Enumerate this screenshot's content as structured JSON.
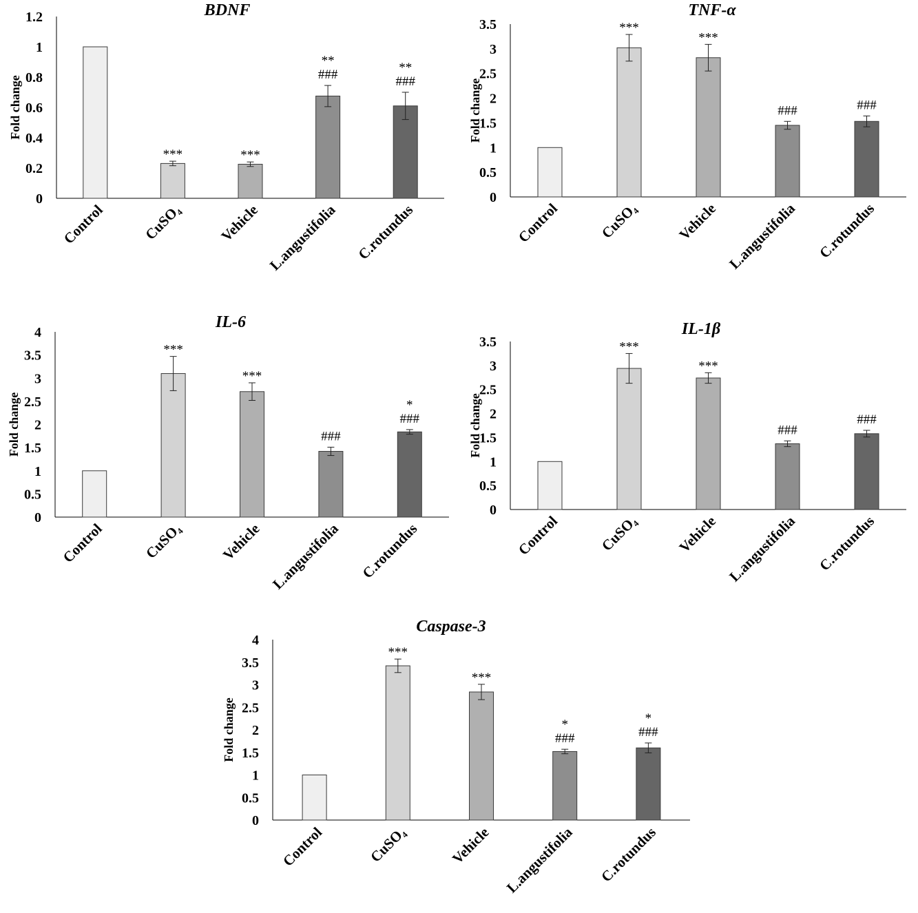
{
  "colors": [
    "#efefef",
    "#d3d3d3",
    "#b0b0b0",
    "#8e8e8e",
    "#666666"
  ],
  "chart_data": [
    {
      "type": "bar",
      "title": "BDNF",
      "ylabel": "Fold change",
      "categories": [
        "Control",
        "CuSO₄",
        "Vehicle",
        "L.angustifolia",
        "C.rotundus"
      ],
      "values": [
        1.0,
        0.23,
        0.225,
        0.675,
        0.61
      ],
      "errors": [
        0,
        0.015,
        0.015,
        0.07,
        0.09
      ],
      "significance_top": [
        "",
        "***",
        "***",
        "**",
        "**"
      ],
      "significance_bottom": [
        "",
        "",
        "",
        "###",
        "###"
      ],
      "ylim": [
        0,
        1.2
      ],
      "yticks": [
        "0",
        "0.2",
        "0.4",
        "0.6",
        "0.8",
        "1",
        "1.2"
      ],
      "tick_values": [
        0,
        0.2,
        0.4,
        0.6,
        0.8,
        1,
        1.2
      ]
    },
    {
      "type": "bar",
      "title": "TNF-α",
      "ylabel": "Fold change",
      "categories": [
        "Control",
        "CuSO₄",
        "Vehicle",
        "L.angustifolia",
        "C.rotundus"
      ],
      "values": [
        1.0,
        3.02,
        2.82,
        1.45,
        1.53
      ],
      "errors": [
        0,
        0.27,
        0.27,
        0.08,
        0.11
      ],
      "significance_top": [
        "",
        "***",
        "***",
        "",
        ""
      ],
      "significance_bottom": [
        "",
        "",
        "",
        "###",
        "###"
      ],
      "ylim": [
        0,
        3.5
      ],
      "yticks": [
        "0",
        "0.5",
        "1",
        "1.5",
        "2",
        "2.5",
        "3",
        "3.5"
      ],
      "tick_values": [
        0,
        0.5,
        1,
        1.5,
        2,
        2.5,
        3,
        3.5
      ]
    },
    {
      "type": "bar",
      "title": "IL-6",
      "ylabel": "Fold change",
      "categories": [
        "Control",
        "CuSO₄",
        "Vehicle",
        "L.angustifolia",
        "C.rotundus"
      ],
      "values": [
        1.0,
        3.1,
        2.71,
        1.42,
        1.84
      ],
      "errors": [
        0,
        0.37,
        0.19,
        0.09,
        0.05
      ],
      "significance_top": [
        "",
        "***",
        "***",
        "",
        "*"
      ],
      "significance_bottom": [
        "",
        "",
        "",
        "###",
        "###"
      ],
      "ylim": [
        0,
        4
      ],
      "yticks": [
        "0",
        "0.5",
        "1",
        "1.5",
        "2",
        "2.5",
        "3",
        "3.5",
        "4"
      ],
      "tick_values": [
        0,
        0.5,
        1,
        1.5,
        2,
        2.5,
        3,
        3.5,
        4
      ]
    },
    {
      "type": "bar",
      "title": "IL-1β",
      "ylabel": "Fold change",
      "categories": [
        "Control",
        "CuSO₄",
        "Vehicle",
        "L.angustifolia",
        "C.rotundus"
      ],
      "values": [
        1.0,
        2.94,
        2.74,
        1.37,
        1.58
      ],
      "errors": [
        0,
        0.31,
        0.11,
        0.06,
        0.07
      ],
      "significance_top": [
        "",
        "***",
        "***",
        "",
        ""
      ],
      "significance_bottom": [
        "",
        "",
        "",
        "###",
        "###"
      ],
      "ylim": [
        0,
        3.5
      ],
      "yticks": [
        "0",
        "0.5",
        "1",
        "1.5",
        "2",
        "2.5",
        "3",
        "3.5"
      ],
      "tick_values": [
        0,
        0.5,
        1,
        1.5,
        2,
        2.5,
        3,
        3.5
      ]
    },
    {
      "type": "bar",
      "title": "Caspase-3",
      "ylabel": "Fold change",
      "categories": [
        "Control",
        "CuSO₄",
        "Vehicle",
        "L.angustifolia",
        "C.rotundus"
      ],
      "values": [
        1.0,
        3.42,
        2.84,
        1.52,
        1.6
      ],
      "errors": [
        0,
        0.15,
        0.17,
        0.05,
        0.11
      ],
      "significance_top": [
        "",
        "***",
        "***",
        "*",
        "*"
      ],
      "significance_bottom": [
        "",
        "",
        "",
        "###",
        "###"
      ],
      "ylim": [
        0,
        4
      ],
      "yticks": [
        "0",
        "0.5",
        "1",
        "1.5",
        "2",
        "2.5",
        "3",
        "3.5",
        "4"
      ],
      "tick_values": [
        0,
        0.5,
        1,
        1.5,
        2,
        2.5,
        3,
        3.5,
        4
      ]
    }
  ]
}
